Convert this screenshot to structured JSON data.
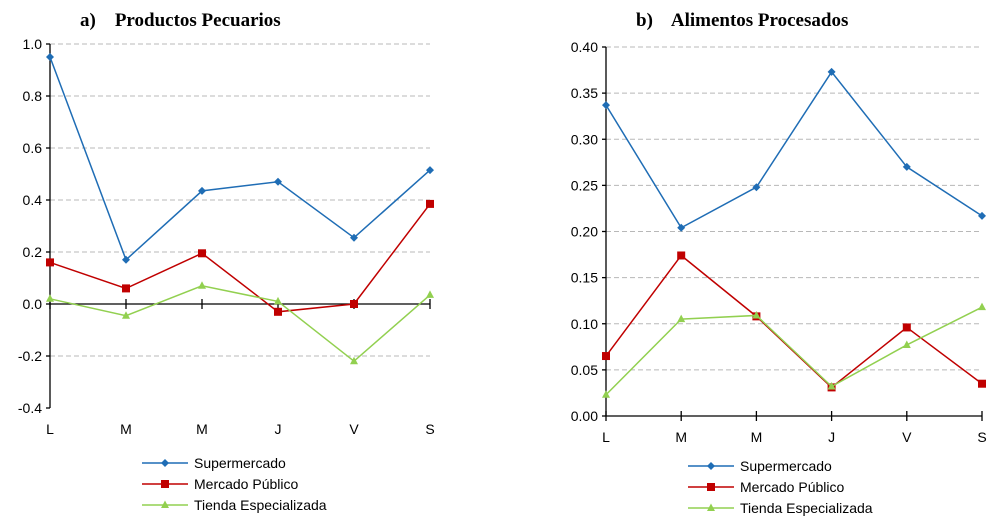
{
  "chart_data": [
    {
      "type": "line",
      "title": "a)    Productos Pecuarios",
      "categories": [
        "L",
        "M",
        "M",
        "J",
        "V",
        "S"
      ],
      "ylim": [
        -0.4,
        1.0
      ],
      "yticks": [
        "-0.4",
        "-0.2",
        "0.0",
        "0.2",
        "0.4",
        "0.6",
        "0.8",
        "1.0"
      ],
      "ytick_values": [
        -0.4,
        -0.2,
        0.0,
        0.2,
        0.4,
        0.6,
        0.8,
        1.0
      ],
      "grid": true,
      "legend": "bottom",
      "series": [
        {
          "name": "Supermercado",
          "values": [
            0.95,
            0.17,
            0.435,
            0.47,
            0.255,
            0.515
          ],
          "color": "#1f6db5",
          "marker": "diamond"
        },
        {
          "name": "Mercado Público",
          "values": [
            0.16,
            0.06,
            0.195,
            -0.03,
            0.0,
            0.385
          ],
          "color": "#c00000",
          "marker": "square"
        },
        {
          "name": "Tienda Especializada",
          "values": [
            0.02,
            -0.045,
            0.07,
            0.01,
            -0.22,
            0.035
          ],
          "color": "#92d050",
          "marker": "triangle"
        }
      ]
    },
    {
      "type": "line",
      "title": "b)    Alimentos Procesados",
      "categories": [
        "L",
        "M",
        "M",
        "J",
        "V",
        "S"
      ],
      "ylim": [
        0.0,
        0.4
      ],
      "yticks": [
        "0.00",
        "0.05",
        "0.10",
        "0.15",
        "0.20",
        "0.25",
        "0.30",
        "0.35",
        "0.40"
      ],
      "ytick_values": [
        0.0,
        0.05,
        0.1,
        0.15,
        0.2,
        0.25,
        0.3,
        0.35,
        0.4
      ],
      "grid": true,
      "legend": "bottom",
      "series": [
        {
          "name": "Supermercado",
          "values": [
            0.337,
            0.204,
            0.248,
            0.373,
            0.27,
            0.217
          ],
          "color": "#1f6db5",
          "marker": "diamond"
        },
        {
          "name": "Mercado Público",
          "values": [
            0.065,
            0.174,
            0.108,
            0.031,
            0.096,
            0.035
          ],
          "color": "#c00000",
          "marker": "square"
        },
        {
          "name": "Tienda Especializada",
          "values": [
            0.023,
            0.105,
            0.109,
            0.032,
            0.077,
            0.118
          ],
          "color": "#92d050",
          "marker": "triangle"
        }
      ]
    }
  ]
}
